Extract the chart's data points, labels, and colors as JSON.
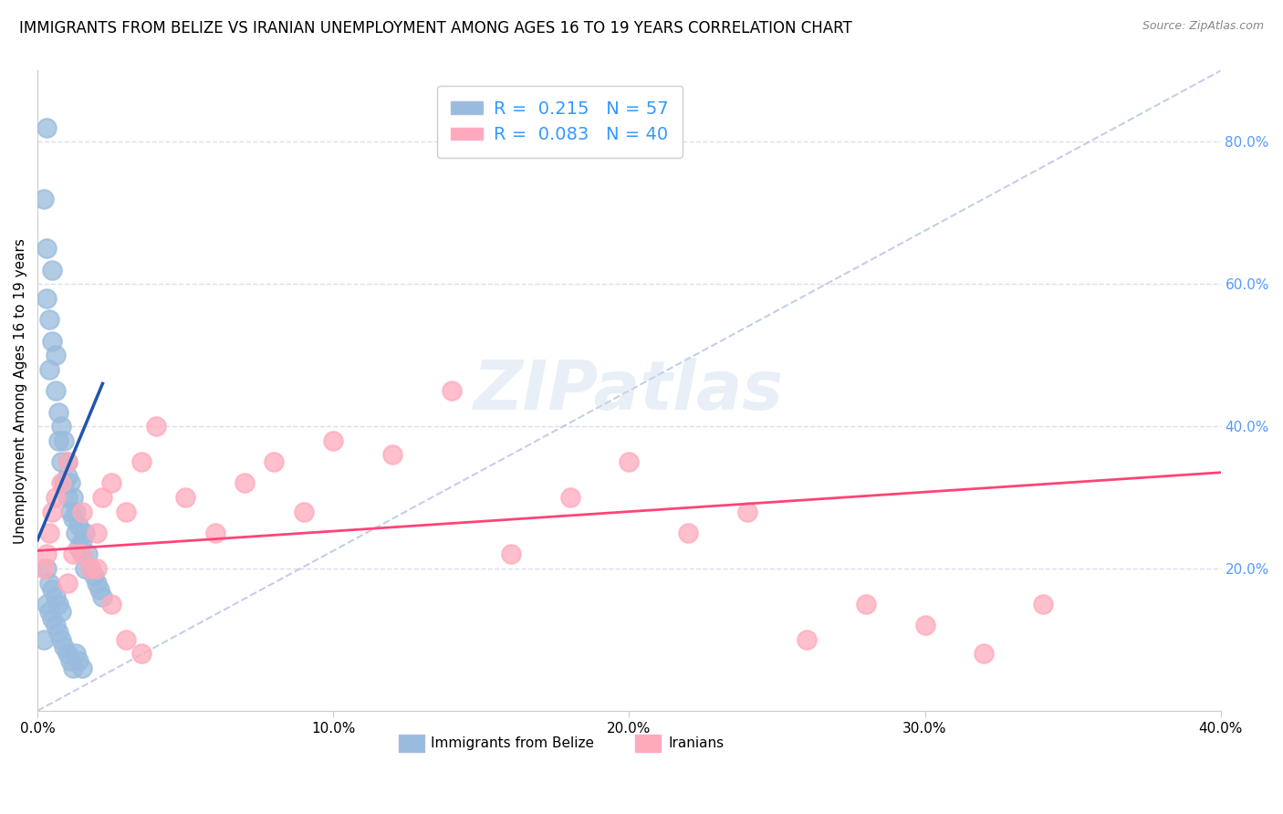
{
  "title": "IMMIGRANTS FROM BELIZE VS IRANIAN UNEMPLOYMENT AMONG AGES 16 TO 19 YEARS CORRELATION CHART",
  "source": "Source: ZipAtlas.com",
  "ylabel": "Unemployment Among Ages 16 to 19 years",
  "xlim": [
    0.0,
    0.4
  ],
  "ylim": [
    0.0,
    0.9
  ],
  "xticks": [
    0.0,
    0.1,
    0.2,
    0.3,
    0.4
  ],
  "xticklabels": [
    "0.0%",
    "10.0%",
    "20.0%",
    "30.0%",
    "40.0%"
  ],
  "yticks_right": [
    0.2,
    0.4,
    0.6,
    0.8
  ],
  "yticklabels_right": [
    "20.0%",
    "40.0%",
    "60.0%",
    "80.0%"
  ],
  "blue_color": "#99BBDD",
  "pink_color": "#FFAABB",
  "blue_line_color": "#2255AA",
  "pink_line_color": "#FF4477",
  "diag_color": "#AABBDD",
  "background_color": "#FFFFFF",
  "grid_color": "#DDDDEE",
  "title_fontsize": 12,
  "label_fontsize": 11,
  "tick_fontsize": 11,
  "right_tick_color": "#5599FF",
  "belize_x": [
    0.002,
    0.003,
    0.003,
    0.004,
    0.004,
    0.005,
    0.005,
    0.006,
    0.006,
    0.007,
    0.007,
    0.008,
    0.008,
    0.009,
    0.009,
    0.01,
    0.01,
    0.01,
    0.011,
    0.011,
    0.012,
    0.012,
    0.013,
    0.013,
    0.014,
    0.014,
    0.015,
    0.015,
    0.016,
    0.016,
    0.017,
    0.018,
    0.019,
    0.02,
    0.021,
    0.022,
    0.003,
    0.004,
    0.005,
    0.006,
    0.007,
    0.008,
    0.009,
    0.01,
    0.011,
    0.012,
    0.013,
    0.014,
    0.015,
    0.003,
    0.004,
    0.005,
    0.006,
    0.007,
    0.008,
    0.002,
    0.003
  ],
  "belize_y": [
    0.72,
    0.65,
    0.58,
    0.55,
    0.48,
    0.62,
    0.52,
    0.5,
    0.45,
    0.42,
    0.38,
    0.4,
    0.35,
    0.38,
    0.32,
    0.35,
    0.3,
    0.33,
    0.28,
    0.32,
    0.27,
    0.3,
    0.25,
    0.28,
    0.26,
    0.23,
    0.24,
    0.22,
    0.25,
    0.2,
    0.22,
    0.2,
    0.19,
    0.18,
    0.17,
    0.16,
    0.15,
    0.14,
    0.13,
    0.12,
    0.11,
    0.1,
    0.09,
    0.08,
    0.07,
    0.06,
    0.08,
    0.07,
    0.06,
    0.2,
    0.18,
    0.17,
    0.16,
    0.15,
    0.14,
    0.1,
    0.82
  ],
  "iranian_x": [
    0.002,
    0.003,
    0.004,
    0.005,
    0.006,
    0.008,
    0.01,
    0.012,
    0.015,
    0.018,
    0.02,
    0.022,
    0.025,
    0.03,
    0.035,
    0.04,
    0.05,
    0.06,
    0.07,
    0.08,
    0.09,
    0.1,
    0.12,
    0.14,
    0.16,
    0.18,
    0.2,
    0.22,
    0.24,
    0.26,
    0.28,
    0.3,
    0.32,
    0.34,
    0.01,
    0.015,
    0.02,
    0.025,
    0.03,
    0.035
  ],
  "iranian_y": [
    0.2,
    0.22,
    0.25,
    0.28,
    0.3,
    0.32,
    0.35,
    0.22,
    0.28,
    0.2,
    0.25,
    0.3,
    0.32,
    0.28,
    0.35,
    0.4,
    0.3,
    0.25,
    0.32,
    0.35,
    0.28,
    0.38,
    0.36,
    0.45,
    0.22,
    0.3,
    0.35,
    0.25,
    0.28,
    0.1,
    0.15,
    0.12,
    0.08,
    0.15,
    0.18,
    0.22,
    0.2,
    0.15,
    0.1,
    0.08
  ],
  "blue_trend_x0": 0.0,
  "blue_trend_y0": 0.24,
  "blue_trend_x1": 0.022,
  "blue_trend_y1": 0.46,
  "pink_trend_x0": 0.0,
  "pink_trend_y0": 0.225,
  "pink_trend_x1": 0.4,
  "pink_trend_y1": 0.335
}
